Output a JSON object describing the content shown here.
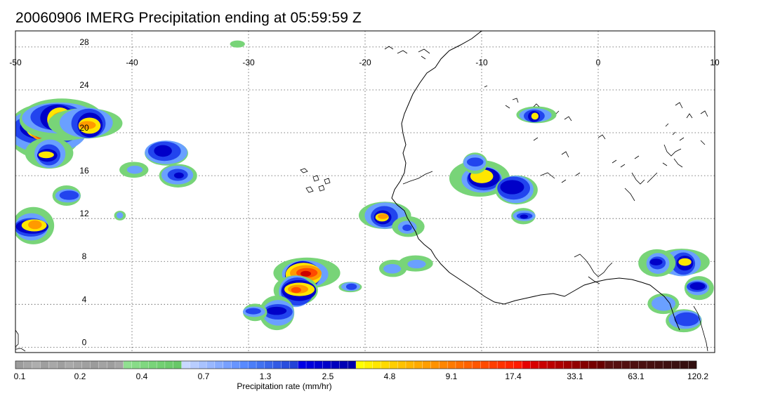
{
  "title": "20060906 IMERG Precipitation ending at 05:59:59 Z",
  "map": {
    "lon_labels": [
      "-50",
      "-40",
      "-30",
      "-20",
      "-10",
      "0",
      "10"
    ],
    "lat_labels": [
      "28",
      "24",
      "20",
      "16",
      "12",
      "8",
      "4",
      "0"
    ],
    "lon_values": [
      -50,
      -40,
      -30,
      -20,
      -10,
      0,
      10
    ],
    "lat_values": [
      28,
      24,
      20,
      16,
      12,
      8,
      4,
      0
    ],
    "lon_range": [
      -50,
      10
    ],
    "lat_range": [
      -0.5,
      29.5
    ],
    "gridlines": true,
    "grid_style": "dotted",
    "coastline_color": "#000000",
    "precip_cells": [
      {
        "lon": -47.5,
        "lat": 20.3,
        "level": 1.0,
        "size": 3.2
      },
      {
        "lon": -46.2,
        "lat": 21.3,
        "level": 0.9,
        "size": 3.0
      },
      {
        "lon": -43.8,
        "lat": 20.8,
        "level": 0.7,
        "size": 2.6
      },
      {
        "lon": -47.2,
        "lat": 18.0,
        "level": 0.6,
        "size": 2.0
      },
      {
        "lon": -48.5,
        "lat": 11.3,
        "level": 0.75,
        "size": 2.2
      },
      {
        "lon": -45.5,
        "lat": 14.2,
        "level": 0.35,
        "size": 1.6
      },
      {
        "lon": -37.2,
        "lat": 18.2,
        "level": 0.55,
        "size": 2.0
      },
      {
        "lon": -36.0,
        "lat": 16.0,
        "level": 0.45,
        "size": 1.4
      },
      {
        "lon": -39.8,
        "lat": 16.5,
        "level": 0.3,
        "size": 1.0
      },
      {
        "lon": -25.2,
        "lat": 6.8,
        "level": 1.0,
        "size": 2.6
      },
      {
        "lon": -25.8,
        "lat": 5.3,
        "level": 0.85,
        "size": 2.2
      },
      {
        "lon": -27.6,
        "lat": 3.3,
        "level": 0.45,
        "size": 2.0
      },
      {
        "lon": -29.5,
        "lat": 3.3,
        "level": 0.4,
        "size": 1.2
      },
      {
        "lon": -21.2,
        "lat": 5.6,
        "level": 0.35,
        "size": 0.9
      },
      {
        "lon": -18.4,
        "lat": 12.2,
        "level": 0.75,
        "size": 1.8
      },
      {
        "lon": -16.3,
        "lat": 11.2,
        "level": 0.4,
        "size": 1.2
      },
      {
        "lon": -10.0,
        "lat": 15.8,
        "level": 0.6,
        "size": 2.8
      },
      {
        "lon": -7.2,
        "lat": 14.8,
        "level": 0.55,
        "size": 2.4
      },
      {
        "lon": -10.5,
        "lat": 17.2,
        "level": 0.4,
        "size": 1.3
      },
      {
        "lon": -6.4,
        "lat": 12.2,
        "level": 0.45,
        "size": 1.0
      },
      {
        "lon": -5.4,
        "lat": 21.6,
        "level": 0.6,
        "size": 1.4
      },
      {
        "lon": 7.3,
        "lat": 7.9,
        "level": 0.65,
        "size": 2.0
      },
      {
        "lon": 5.0,
        "lat": 7.9,
        "level": 0.5,
        "size": 1.6
      },
      {
        "lon": 8.6,
        "lat": 5.6,
        "level": 0.45,
        "size": 1.6
      },
      {
        "lon": 7.5,
        "lat": 2.5,
        "level": 0.35,
        "size": 2.0
      },
      {
        "lon": 5.5,
        "lat": 4.0,
        "level": 0.3,
        "size": 1.4
      },
      {
        "lon": -17.6,
        "lat": 7.3,
        "level": 0.25,
        "size": 1.0
      },
      {
        "lon": -15.6,
        "lat": 7.8,
        "level": 0.25,
        "size": 1.2
      },
      {
        "lon": -31.0,
        "lat": 28.3,
        "level": 0.15,
        "size": 0.6
      },
      {
        "lon": -41.0,
        "lat": 12.3,
        "level": 0.3,
        "size": 0.6
      }
    ]
  },
  "colorbar": {
    "title": "Precipitation rate (mm/hr)",
    "labels": [
      "0.1",
      "0.2",
      "0.4",
      "0.7",
      "1.3",
      "2.5",
      "4.8",
      "9.1",
      "17.4",
      "33.1",
      "63.1",
      "120.2"
    ],
    "colors": [
      "#9c9c9c",
      "#a5a5a5",
      "#aeaeae",
      "#9f9f9f",
      "#a8a8a8",
      "#9f9f9f",
      "#a9a9a9",
      "#a4a4a4",
      "#a0a0a0",
      "#9c9c9c",
      "#a3a3a3",
      "#9e9e9e",
      "#a6a6a6",
      "#90e090",
      "#88dc88",
      "#80d880",
      "#79d479",
      "#72d072",
      "#6dcc6d",
      "#68c868",
      "#c8d8ff",
      "#b8cdff",
      "#a8c2ff",
      "#98b7ff",
      "#88acff",
      "#78a0ff",
      "#6895ff",
      "#588aff",
      "#4c7ef8",
      "#4272f0",
      "#3a66ea",
      "#325ae4",
      "#2a4ede",
      "#2242d8",
      "#0000e6",
      "#0000dc",
      "#0000d2",
      "#0000c8",
      "#0000be",
      "#0000b4",
      "#0000aa",
      "#ffff00",
      "#fff200",
      "#ffe600",
      "#ffda00",
      "#ffce00",
      "#ffc200",
      "#ffb600",
      "#ffaa00",
      "#ff9e00",
      "#ff9200",
      "#ff8600",
      "#ff7a00",
      "#ff6e00",
      "#ff6200",
      "#ff5600",
      "#ff4a00",
      "#ff3e00",
      "#ff3200",
      "#ff2600",
      "#ff1a00",
      "#e60000",
      "#d80000",
      "#ca0000",
      "#bc0000",
      "#ae0000",
      "#a00000",
      "#920000",
      "#840000",
      "#760000",
      "#680000",
      "#5a1010",
      "#561010",
      "#521010",
      "#4e1010",
      "#4a1010",
      "#461010",
      "#421010",
      "#3e1010",
      "#3a1010",
      "#361010",
      "#321010"
    ]
  }
}
